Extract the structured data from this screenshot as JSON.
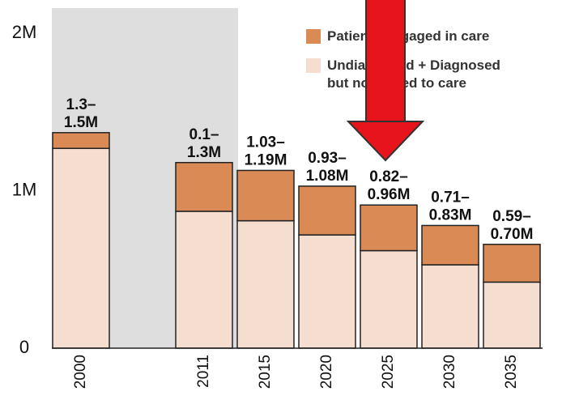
{
  "chart_data": {
    "type": "stacked_bar",
    "categories": [
      "2000",
      null,
      "2011",
      "2015",
      "2020",
      "2025",
      "2030",
      "2035"
    ],
    "series": [
      {
        "name": "Undiagnosed + Diagnosed but not linked to care",
        "color": "#f5ddd0",
        "values": [
          1270000,
          null,
          870000,
          810000,
          720000,
          620000,
          530000,
          420000
        ]
      },
      {
        "name": "Patients engaged in care",
        "color": "#d98a55",
        "values": [
          100000,
          null,
          310000,
          320000,
          310000,
          290000,
          250000,
          240000
        ]
      }
    ],
    "annotations": [
      [
        "1.3–",
        "1.5M"
      ],
      null,
      [
        "0.1–",
        "1.3M"
      ],
      [
        "1.03–",
        "1.19M"
      ],
      [
        "0.93–",
        "1.08M"
      ],
      [
        "0.82–",
        "0.96M"
      ],
      [
        "0.71–",
        "0.83M"
      ],
      [
        "0.59–",
        "0.70M"
      ]
    ],
    "ylim": [
      0,
      2100000
    ],
    "yticks": [
      0,
      {
        "value": 1000000,
        "label": "1M"
      },
      {
        "value": 2000000,
        "label": "2M"
      }
    ]
  }
}
